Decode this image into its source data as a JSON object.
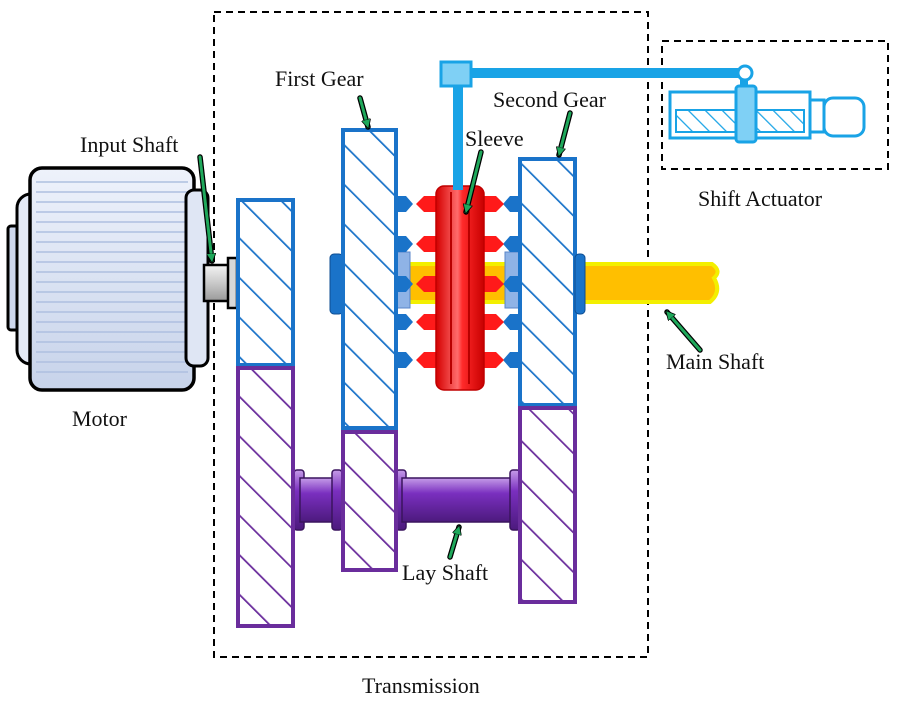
{
  "labels": {
    "motor": "Motor",
    "input_shaft": "Input Shaft",
    "first_gear": "First Gear",
    "second_gear": "Second Gear",
    "sleeve": "Sleeve",
    "main_shaft": "Main Shaft",
    "lay_shaft": "Lay Shaft",
    "shift_actuator": "Shift Actuator",
    "transmission": "Transmission"
  },
  "colors": {
    "gear_blue": "#1a73c9",
    "actuator_blue": "#19a3e6",
    "lay_purple": "#6a2d9c",
    "sleeve_red": "#ff1a1a",
    "shaft_yellow": "#ffbf00",
    "shaft_yellow_edge": "#f3ef00",
    "arrow_green": "#1fa85b",
    "motor_stripe": "#c8d4ea",
    "dashed_box": "#000000"
  }
}
